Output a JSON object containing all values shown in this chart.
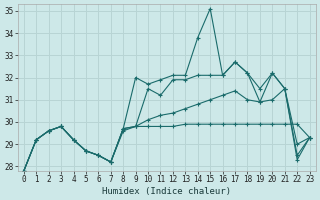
{
  "xlabel": "Humidex (Indice chaleur)",
  "bg_color": "#cde8e8",
  "grid_color": "#b8d4d4",
  "line_color": "#1a6b6b",
  "xlim": [
    -0.5,
    23.5
  ],
  "ylim": [
    27.8,
    35.3
  ],
  "yticks": [
    28,
    29,
    30,
    31,
    32,
    33,
    34,
    35
  ],
  "xticks": [
    0,
    1,
    2,
    3,
    4,
    5,
    6,
    7,
    8,
    9,
    10,
    11,
    12,
    13,
    14,
    15,
    16,
    17,
    18,
    19,
    20,
    21,
    22,
    23
  ],
  "series": [
    [
      27.8,
      29.2,
      29.6,
      29.8,
      29.2,
      28.7,
      28.5,
      28.2,
      29.7,
      29.8,
      29.8,
      29.8,
      29.8,
      29.9,
      29.9,
      29.9,
      29.9,
      29.9,
      29.9,
      29.9,
      29.9,
      29.9,
      29.9,
      29.3
    ],
    [
      27.8,
      29.2,
      29.6,
      29.8,
      29.2,
      28.7,
      28.5,
      28.2,
      29.6,
      29.8,
      30.1,
      30.3,
      30.4,
      30.6,
      30.8,
      31.0,
      31.2,
      31.4,
      31.0,
      30.9,
      31.0,
      31.5,
      29.0,
      29.3
    ],
    [
      27.8,
      29.2,
      29.6,
      29.8,
      29.2,
      28.7,
      28.5,
      28.2,
      29.7,
      29.8,
      31.5,
      31.2,
      31.9,
      31.9,
      32.1,
      32.1,
      32.1,
      32.7,
      32.2,
      31.5,
      32.2,
      31.5,
      28.5,
      29.3
    ],
    [
      27.8,
      29.2,
      29.6,
      29.8,
      29.2,
      28.7,
      28.5,
      28.2,
      29.7,
      32.0,
      31.7,
      31.9,
      32.1,
      32.1,
      33.8,
      35.1,
      32.1,
      32.7,
      32.2,
      30.9,
      32.2,
      31.5,
      28.3,
      29.3
    ]
  ]
}
